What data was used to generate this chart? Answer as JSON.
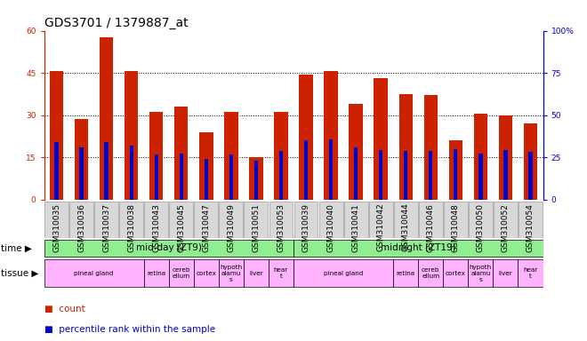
{
  "title": "GDS3701 / 1379887_at",
  "samples": [
    "GSM310035",
    "GSM310036",
    "GSM310037",
    "GSM310038",
    "GSM310043",
    "GSM310045",
    "GSM310047",
    "GSM310049",
    "GSM310051",
    "GSM310053",
    "GSM310039",
    "GSM310040",
    "GSM310041",
    "GSM310042",
    "GSM310044",
    "GSM310046",
    "GSM310048",
    "GSM310050",
    "GSM310052",
    "GSM310054"
  ],
  "counts": [
    45.5,
    28.5,
    57.5,
    45.5,
    31.0,
    33.0,
    24.0,
    31.0,
    15.0,
    31.0,
    44.5,
    45.5,
    34.0,
    43.0,
    37.5,
    37.0,
    21.0,
    30.5,
    30.0,
    27.0
  ],
  "percentile_ranks_pct": [
    34.0,
    31.0,
    34.0,
    32.0,
    26.5,
    27.0,
    24.0,
    26.5,
    23.0,
    29.0,
    35.0,
    35.5,
    31.0,
    29.5,
    28.5,
    28.5,
    30.0,
    27.0,
    29.5,
    28.0
  ],
  "time_groups": [
    {
      "label": "mid-day (ZT9)",
      "start": 0,
      "end": 10,
      "color": "#90EE90"
    },
    {
      "label": "midnight (ZT19)",
      "start": 10,
      "end": 20,
      "color": "#90EE90"
    }
  ],
  "tissue_groups": [
    {
      "label": "pineal gland",
      "start": 0,
      "end": 4
    },
    {
      "label": "retina",
      "start": 4,
      "end": 5
    },
    {
      "label": "cereb\nellum",
      "start": 5,
      "end": 6
    },
    {
      "label": "cortex",
      "start": 6,
      "end": 7
    },
    {
      "label": "hypoth\nalamu\ns",
      "start": 7,
      "end": 8
    },
    {
      "label": "liver",
      "start": 8,
      "end": 9
    },
    {
      "label": "hear\nt",
      "start": 9,
      "end": 10
    },
    {
      "label": "pineal gland",
      "start": 10,
      "end": 14
    },
    {
      "label": "retina",
      "start": 14,
      "end": 15
    },
    {
      "label": "cereb\nellum",
      "start": 15,
      "end": 16
    },
    {
      "label": "cortex",
      "start": 16,
      "end": 17
    },
    {
      "label": "hypoth\nalamu\ns",
      "start": 17,
      "end": 18
    },
    {
      "label": "liver",
      "start": 18,
      "end": 19
    },
    {
      "label": "hear\nt",
      "start": 19,
      "end": 20
    }
  ],
  "tissue_color": "#FFB3FF",
  "ylim_left": [
    0,
    60
  ],
  "ylim_right": [
    0,
    100
  ],
  "yticks_left": [
    0,
    15,
    30,
    45,
    60
  ],
  "yticks_right": [
    0,
    25,
    50,
    75,
    100
  ],
  "ytick_labels_left": [
    "0",
    "15",
    "30",
    "45",
    "60"
  ],
  "ytick_labels_right": [
    "0",
    "25",
    "50",
    "75",
    "100%"
  ],
  "bar_color_red": "#CC2200",
  "bar_color_blue": "#0000CC",
  "bar_width": 0.55,
  "bg_color": "#FFFFFF",
  "title_fontsize": 10,
  "tick_fontsize": 6.5,
  "label_fontsize": 7.5,
  "legend_fontsize": 7.5
}
